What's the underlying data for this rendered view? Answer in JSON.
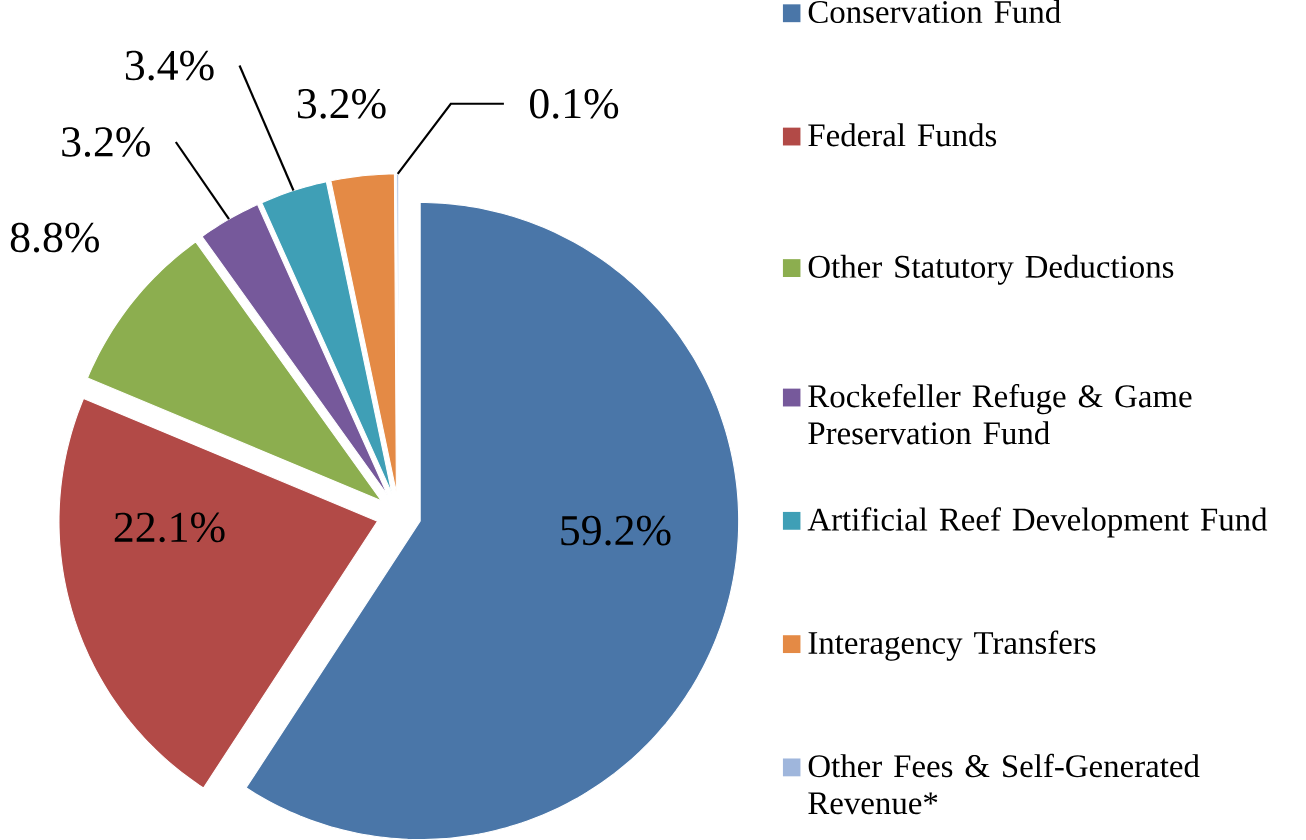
{
  "chart_data": {
    "type": "pie",
    "categories": [
      "Conservation Fund",
      "Federal Funds",
      "Other Statutory Deductions",
      "Rockefeller Refuge & Game Preservation Fund",
      "Artificial Reef Development Fund",
      "Interagency Transfers",
      "Other Fees & Self-Generated Revenue*"
    ],
    "values": [
      59.2,
      22.1,
      8.8,
      3.2,
      3.4,
      3.2,
      0.1
    ],
    "colors": [
      "#4a76a8",
      "#b24a47",
      "#8cae4f",
      "#76599b",
      "#3f9fb6",
      "#e48a45",
      "#9fb6dc"
    ],
    "value_labels": [
      "59.2%",
      "22.1%",
      "8.8%",
      "3.2%",
      "3.4%",
      "3.2%",
      "0.1%"
    ],
    "legend": "right"
  }
}
